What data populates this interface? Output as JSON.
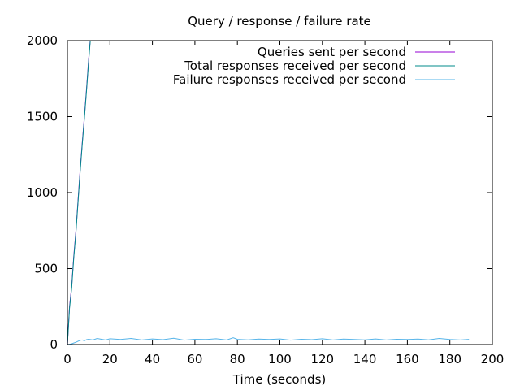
{
  "chart_data": {
    "type": "line",
    "title": "Query / response / failure rate",
    "xlabel": "Time (seconds)",
    "ylabel": "",
    "xlim": [
      0,
      200
    ],
    "ylim": [
      0,
      2000
    ],
    "xticks": [
      0,
      20,
      40,
      60,
      80,
      100,
      120,
      140,
      160,
      180,
      200
    ],
    "yticks": [
      0,
      500,
      1000,
      1500,
      2000
    ],
    "grid": false,
    "legend_position": "top-right",
    "series": [
      {
        "name": "Queries sent per second",
        "color": "#9400d3",
        "x": [
          0,
          1,
          2,
          3,
          4,
          5,
          6,
          7,
          8,
          9,
          10,
          11
        ],
        "y": [
          0,
          250,
          380,
          580,
          750,
          950,
          1150,
          1330,
          1500,
          1680,
          1880,
          2050
        ]
      },
      {
        "name": "Total responses received per second",
        "color": "#008b8b",
        "x": [
          0,
          1,
          2,
          3,
          4,
          5,
          6,
          7,
          8,
          9,
          10,
          11
        ],
        "y": [
          0,
          240,
          370,
          570,
          740,
          940,
          1140,
          1320,
          1490,
          1670,
          1870,
          2040
        ]
      },
      {
        "name": "Failure responses received per second",
        "color": "#56b4e9",
        "x": [
          0,
          1,
          2,
          3,
          4,
          5,
          6,
          7,
          8,
          9,
          10,
          12,
          14,
          16,
          18,
          20,
          25,
          30,
          35,
          40,
          45,
          50,
          55,
          60,
          65,
          70,
          75,
          78,
          80,
          85,
          90,
          95,
          100,
          105,
          110,
          115,
          120,
          125,
          130,
          135,
          140,
          145,
          150,
          155,
          160,
          165,
          170,
          175,
          180,
          185,
          189
        ],
        "y": [
          0,
          2,
          5,
          10,
          15,
          22,
          28,
          30,
          25,
          32,
          35,
          30,
          40,
          35,
          30,
          38,
          33,
          40,
          30,
          37,
          32,
          41,
          29,
          35,
          33,
          38,
          30,
          45,
          34,
          31,
          36,
          33,
          37,
          29,
          35,
          32,
          38,
          30,
          36,
          33,
          31,
          37,
          30,
          35,
          33,
          36,
          31,
          40,
          33,
          30,
          34
        ]
      }
    ]
  }
}
